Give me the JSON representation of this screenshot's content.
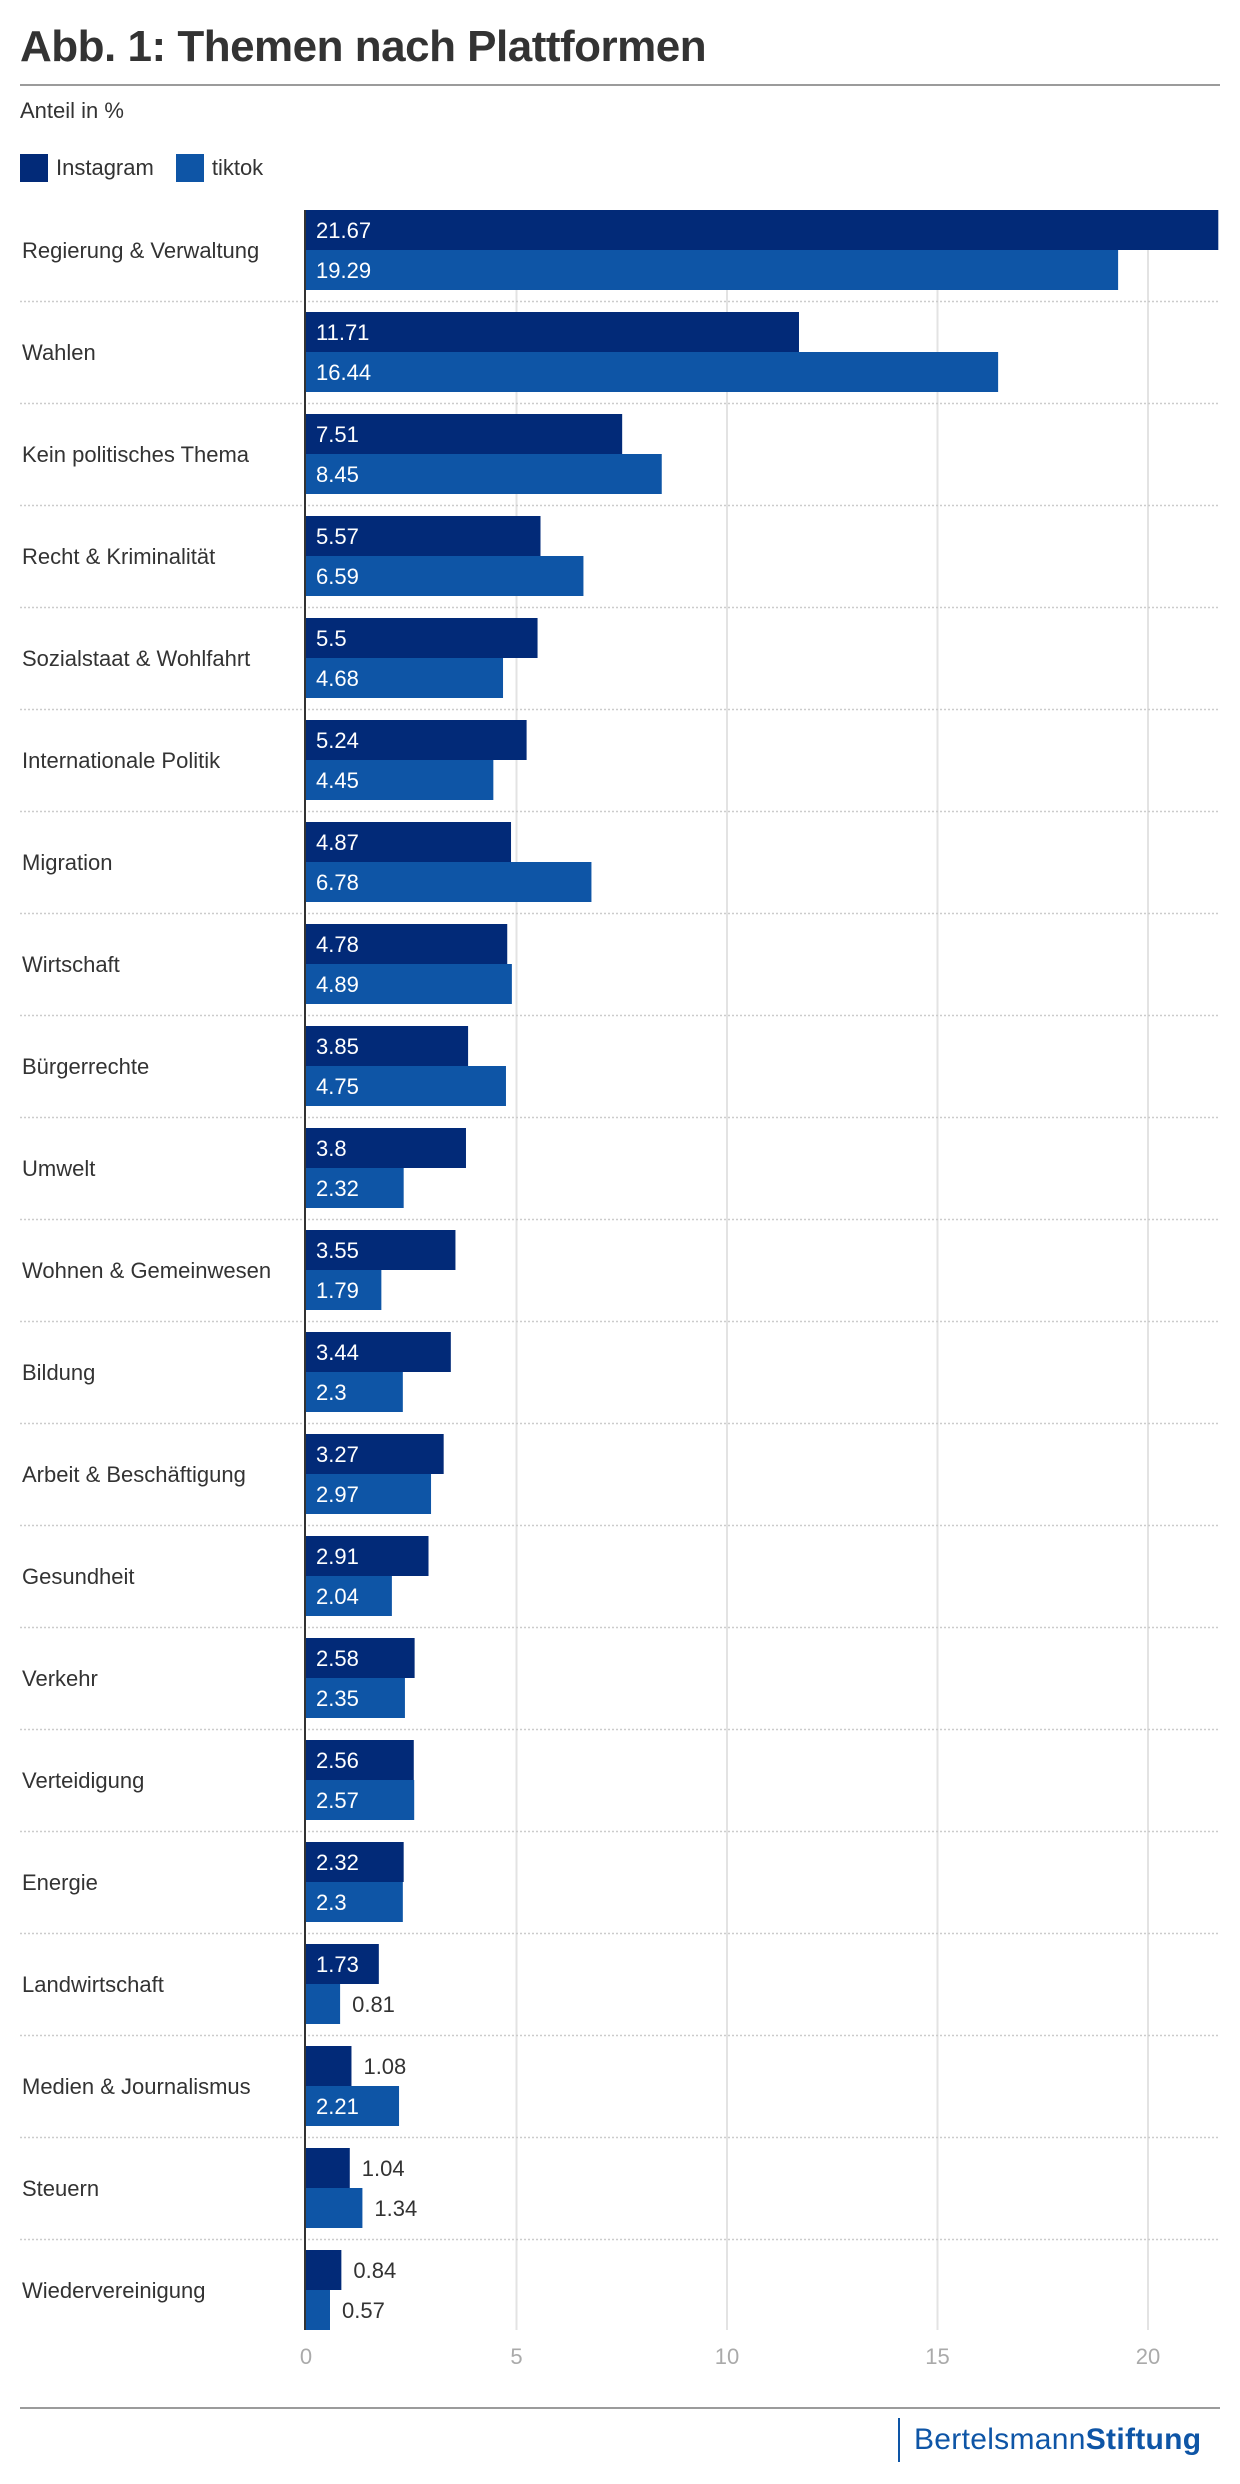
{
  "header": {
    "title": "Abb. 1: Themen nach Plattformen",
    "subtitle": "Anteil in %"
  },
  "colors": {
    "instagram": "#022a78",
    "tiktok": "#0e55a6",
    "label_inside": "#ffffff",
    "label_outside": "#333333",
    "gridline": "#e3e3e3",
    "separator": "#cccccc",
    "axis": "#333333",
    "tick_label": "#aaaaaa"
  },
  "footer": {
    "logo_regular": "Bertelsmann",
    "logo_bold": "Stiftung"
  },
  "chart_data": {
    "type": "bar",
    "orientation": "horizontal",
    "title": "Abb. 1: Themen nach Plattformen",
    "xlabel": "Anteil in %",
    "ylabel": "",
    "xlim": [
      0,
      22
    ],
    "xticks": [
      0,
      5,
      10,
      15,
      20
    ],
    "grid": true,
    "legend": "top-left",
    "categories": [
      "Regierung & Verwaltung",
      "Wahlen",
      "Kein politisches Thema",
      "Recht & Kriminalität",
      "Sozialstaat & Wohlfahrt",
      "Internationale Politik",
      "Migration",
      "Wirtschaft",
      "Bürgerrechte",
      "Umwelt",
      "Wohnen & Gemeinwesen",
      "Bildung",
      "Arbeit & Beschäftigung",
      "Gesundheit",
      "Verkehr",
      "Verteidigung",
      "Energie",
      "Landwirtschaft",
      "Medien & Journalismus",
      "Steuern",
      "Wiedervereinigung"
    ],
    "series": [
      {
        "name": "Instagram",
        "color_key": "instagram",
        "values": [
          21.67,
          11.71,
          7.51,
          5.57,
          5.5,
          5.24,
          4.87,
          4.78,
          3.85,
          3.8,
          3.55,
          3.44,
          3.27,
          2.91,
          2.58,
          2.56,
          2.32,
          1.73,
          1.08,
          1.04,
          0.84
        ]
      },
      {
        "name": "tiktok",
        "color_key": "tiktok",
        "values": [
          19.29,
          16.44,
          8.45,
          6.59,
          4.68,
          4.45,
          6.78,
          4.89,
          4.75,
          2.32,
          1.79,
          2.3,
          2.97,
          2.04,
          2.35,
          2.57,
          2.3,
          0.81,
          2.21,
          1.34,
          0.57
        ]
      }
    ]
  }
}
